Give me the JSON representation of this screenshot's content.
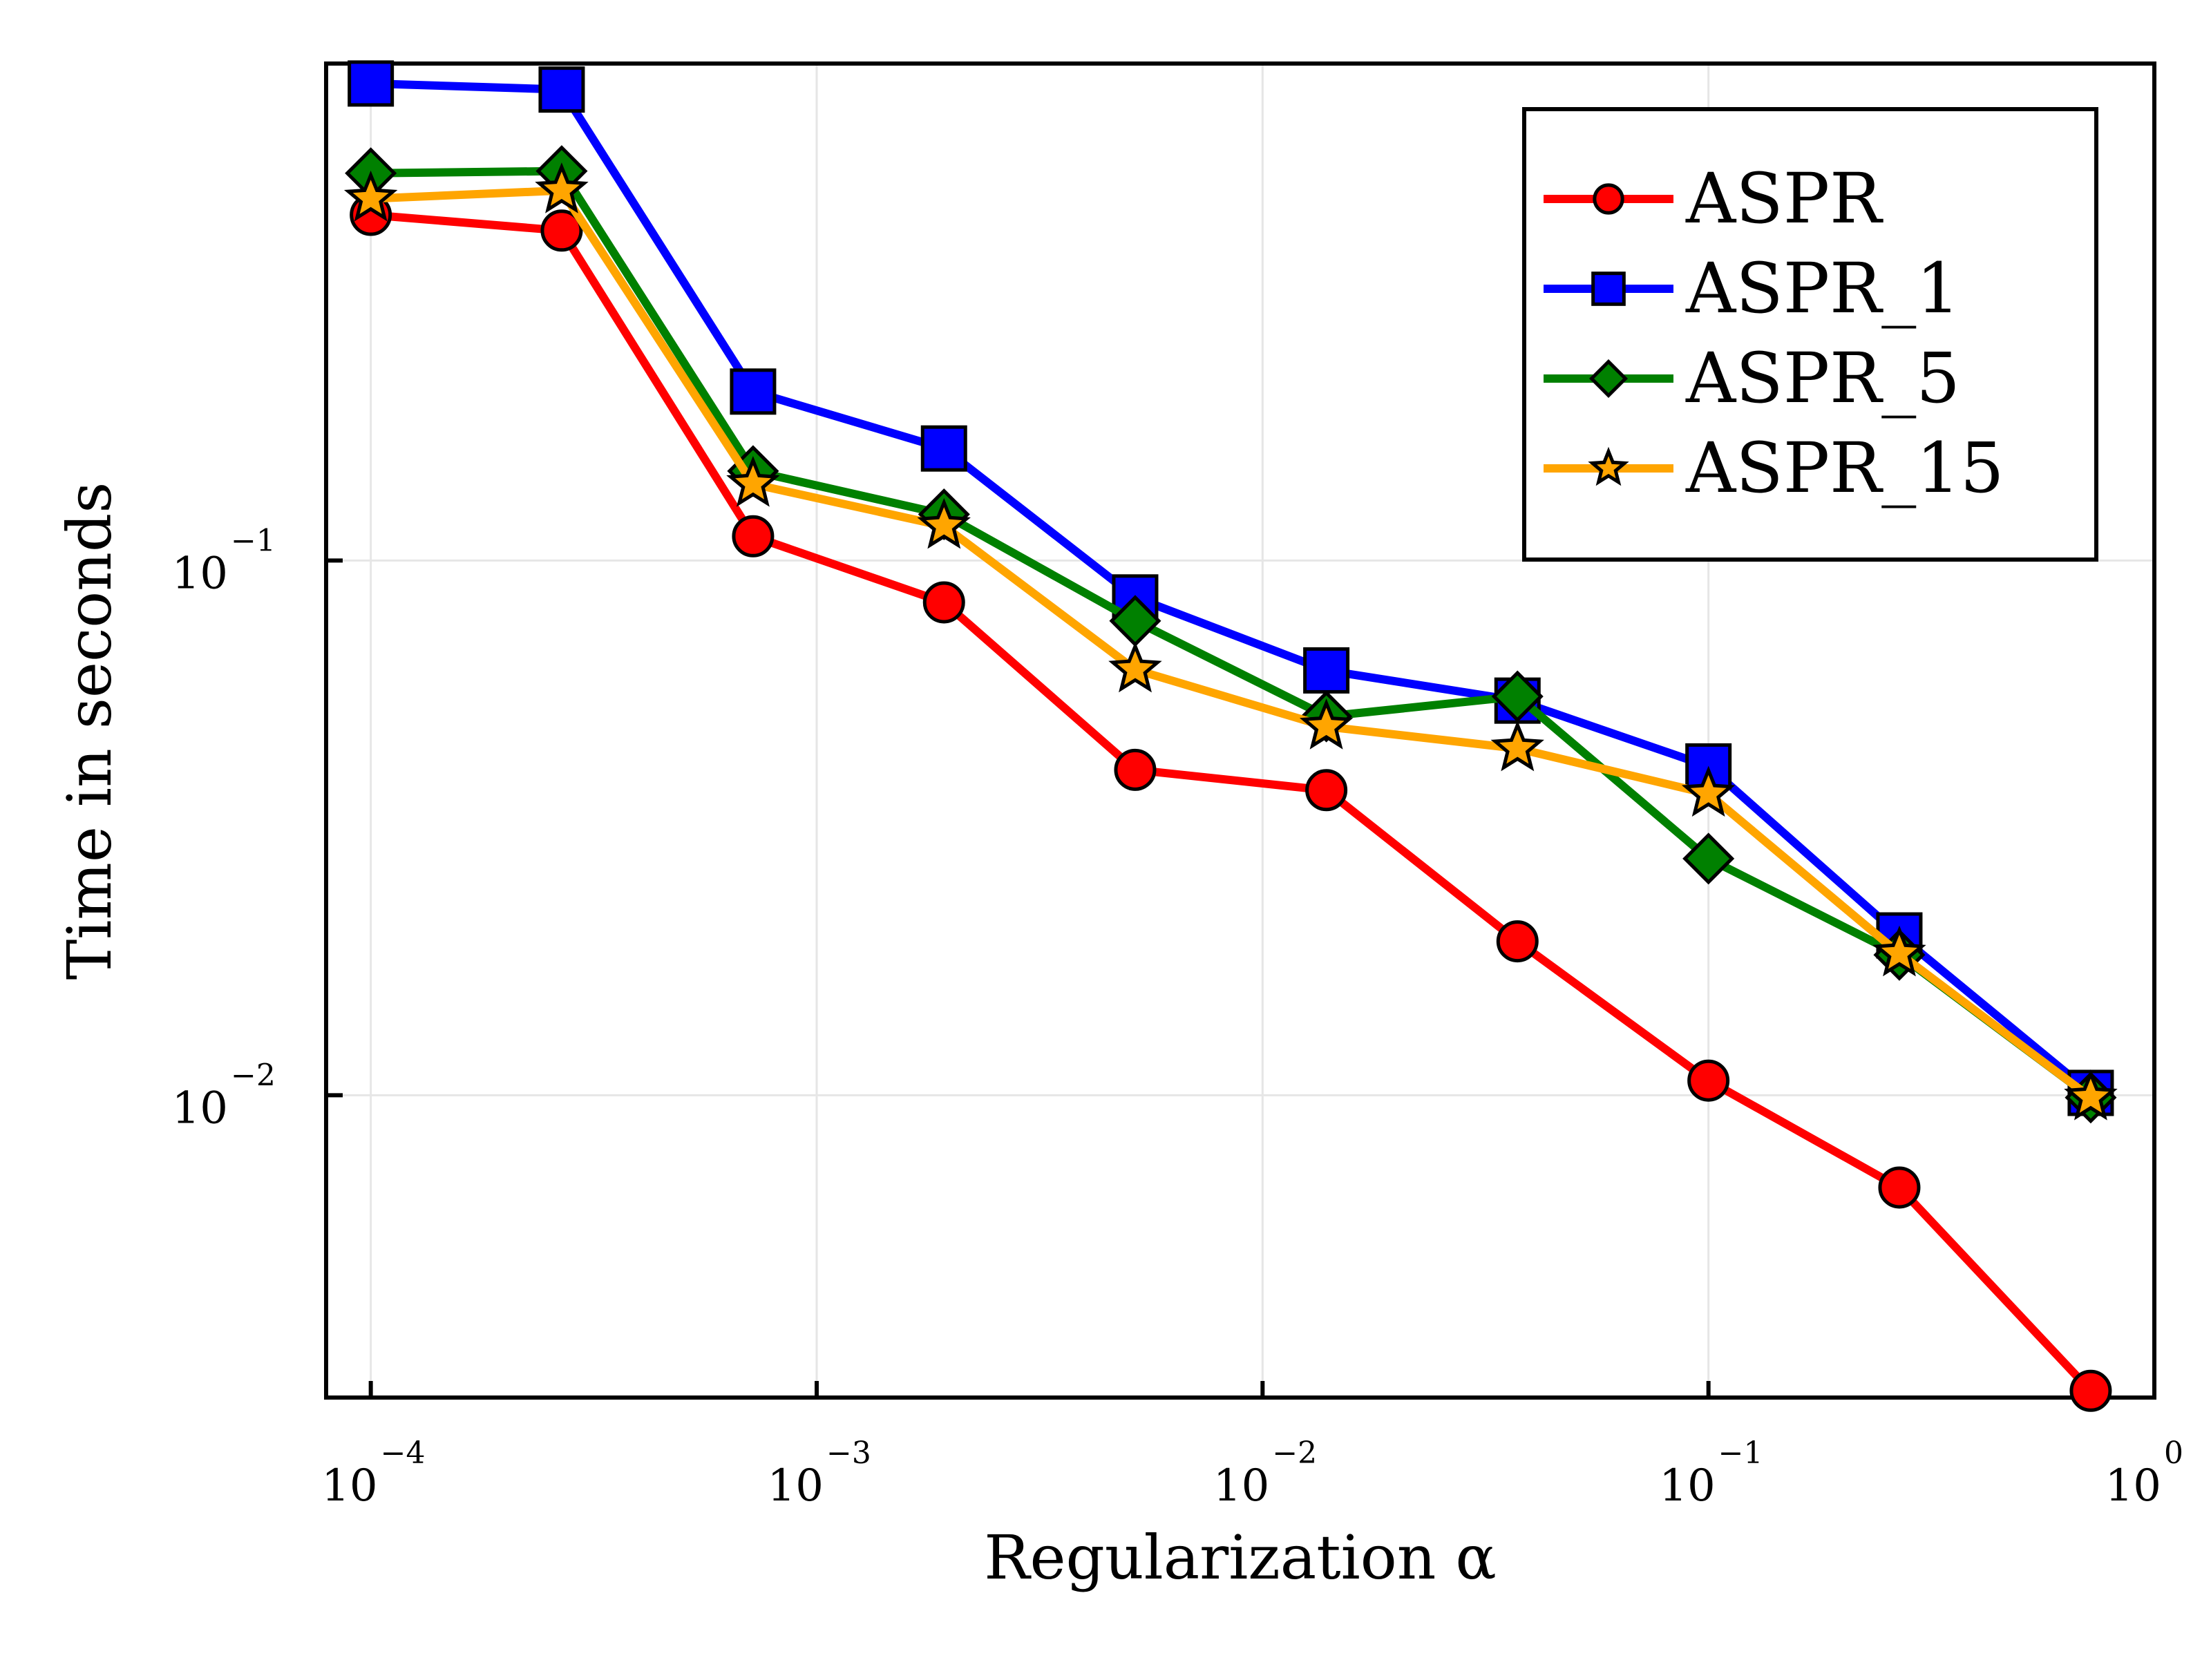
{
  "chart_data": {
    "type": "line",
    "xlabel": "Regularization α",
    "ylabel": "Time in seconds",
    "x_scale": "log",
    "y_scale": "log",
    "xlim": [
      7.94e-05,
      1.0
    ],
    "ylim": [
      0.00272,
      0.85
    ],
    "x_ticks": [
      {
        "value": 0.0001,
        "base": "10",
        "exp": "−4"
      },
      {
        "value": 0.001,
        "base": "10",
        "exp": "−3"
      },
      {
        "value": 0.01,
        "base": "10",
        "exp": "−2"
      },
      {
        "value": 0.1,
        "base": "10",
        "exp": "−1"
      },
      {
        "value": 1,
        "base": "10",
        "exp": "0"
      }
    ],
    "y_ticks": [
      {
        "value": 0.01,
        "base": "10",
        "exp": "−2"
      },
      {
        "value": 0.1,
        "base": "10",
        "exp": "−1"
      }
    ],
    "grid": true,
    "legend_position": "top-right",
    "x": [
      0.0001,
      0.000268,
      0.00072,
      0.00193,
      0.00518,
      0.0139,
      0.0373,
      0.1,
      0.268,
      0.72
    ],
    "series": [
      {
        "name": "ASPR",
        "color": "#ff0000",
        "marker": "circle",
        "values": [
          0.443,
          0.414,
          0.111,
          0.0835,
          0.0406,
          0.0372,
          0.0194,
          0.01065,
          0.00672,
          0.0028
        ]
      },
      {
        "name": "ASPR_1",
        "color": "#0000ff",
        "marker": "square",
        "values": [
          0.78,
          0.76,
          0.207,
          0.162,
          0.0853,
          0.0623,
          0.0547,
          0.0412,
          0.0199,
          0.0101
        ]
      },
      {
        "name": "ASPR_5",
        "color": "#008000",
        "marker": "diamond",
        "values": [
          0.53,
          0.535,
          0.147,
          0.122,
          0.0771,
          0.0511,
          0.0557,
          0.0277,
          0.0183,
          0.0099
        ]
      },
      {
        "name": "ASPR_15",
        "color": "#ffa500",
        "marker": "star",
        "values": [
          0.475,
          0.492,
          0.139,
          0.116,
          0.0625,
          0.0489,
          0.0445,
          0.0366,
          0.0184,
          0.0099
        ]
      }
    ]
  }
}
